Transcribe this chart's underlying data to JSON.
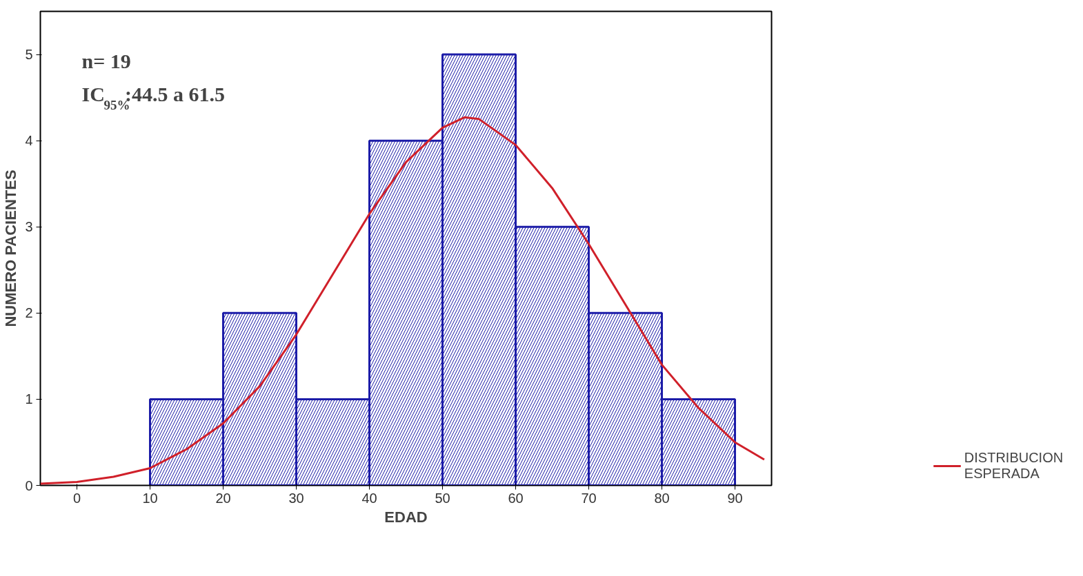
{
  "chart_data": {
    "type": "histogram",
    "xlabel": "EDAD",
    "ylabel": "NUMERO PACIENTES",
    "bins": [
      10,
      20,
      30,
      40,
      50,
      60,
      70,
      80,
      90
    ],
    "values": [
      1,
      2,
      1,
      4,
      5,
      3,
      2,
      1
    ],
    "color": "#1c1ca8",
    "series": [
      {
        "type": "line",
        "name": "DISTRIBUCION ESPERADA",
        "color": "#d0202a",
        "x": [
          -5,
          0,
          5,
          10,
          15,
          20,
          25,
          30,
          35,
          40,
          45,
          50,
          53,
          55,
          60,
          65,
          70,
          75,
          80,
          85,
          90,
          94
        ],
        "values": [
          0.02,
          0.04,
          0.1,
          0.2,
          0.42,
          0.72,
          1.15,
          1.75,
          2.45,
          3.15,
          3.75,
          4.15,
          4.27,
          4.25,
          3.95,
          3.45,
          2.8,
          2.1,
          1.4,
          0.9,
          0.5,
          0.3
        ]
      }
    ],
    "xlim": [
      -5,
      95
    ],
    "ylim": [
      0,
      5.5
    ],
    "xticks": [
      0,
      10,
      20,
      30,
      40,
      50,
      60,
      70,
      80,
      90
    ],
    "yticks": [
      0,
      1,
      2,
      3,
      4,
      5
    ],
    "grid": false,
    "legend": "right",
    "annotations": [
      "n= 19",
      "IC$_{95%}$:44.5 a 61.5"
    ]
  }
}
